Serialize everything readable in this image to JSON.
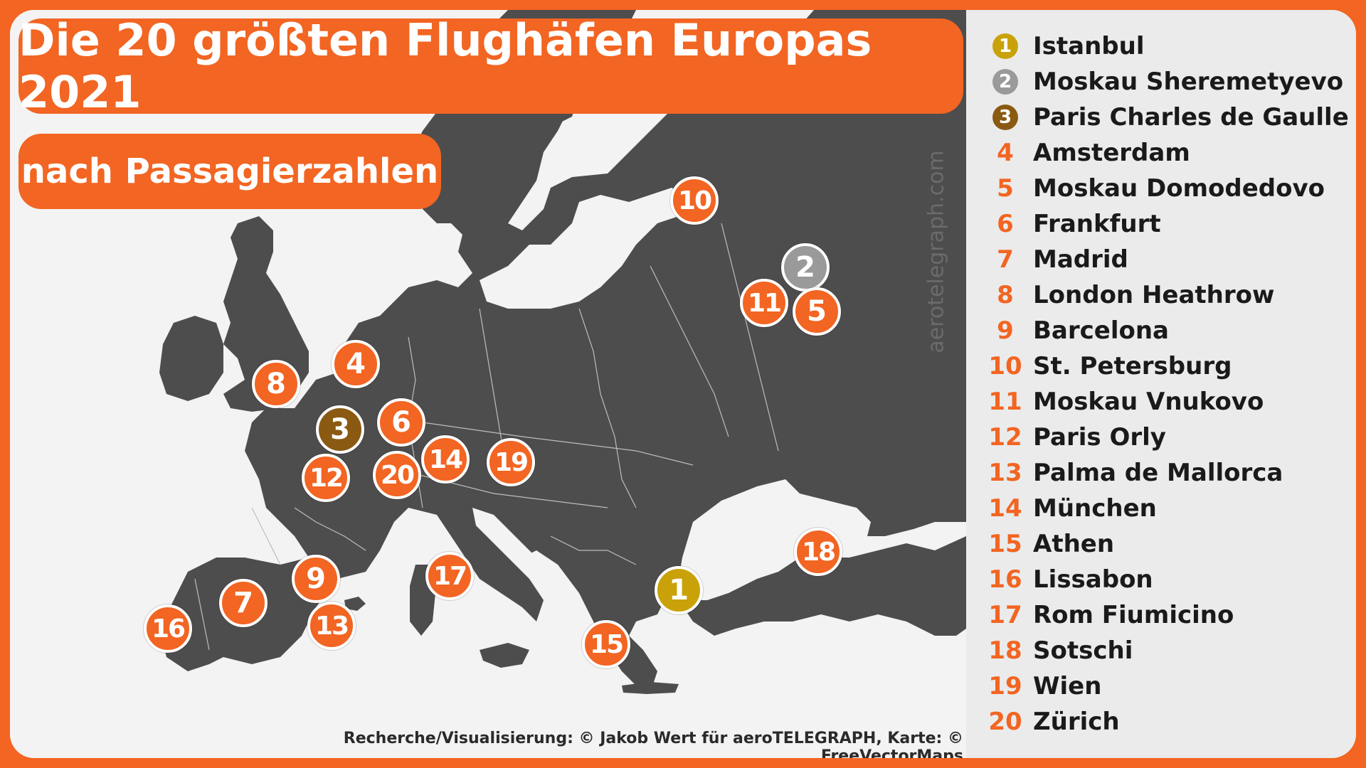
{
  "title": "Die 20 größten Flughäfen Europas 2021",
  "subtitle": "nach Passagierzahlen",
  "watermark": "aerotelegraph.com",
  "credit": "Recherche/Visualisierung: © Jakob Wert für aeroTELEGRAPH, Karte: © FreeVectorMaps",
  "colors": {
    "background": "#f26522",
    "accent": "#f26522",
    "land": "#4d4d4d",
    "water": "#f3f3f3",
    "gold": "#c9a20a",
    "silver": "#9a9a9a",
    "bronze": "#8a5a12"
  },
  "markers": [
    {
      "rank": "1",
      "style": "gold"
    },
    {
      "rank": "2",
      "style": "silver"
    },
    {
      "rank": "3",
      "style": "bronze"
    },
    {
      "rank": "4",
      "style": "orange"
    },
    {
      "rank": "5",
      "style": "orange"
    },
    {
      "rank": "6",
      "style": "orange"
    },
    {
      "rank": "7",
      "style": "orange"
    },
    {
      "rank": "8",
      "style": "orange"
    },
    {
      "rank": "9",
      "style": "orange"
    },
    {
      "rank": "10",
      "style": "orange"
    },
    {
      "rank": "11",
      "style": "orange"
    },
    {
      "rank": "12",
      "style": "orange"
    },
    {
      "rank": "13",
      "style": "orange"
    },
    {
      "rank": "14",
      "style": "orange"
    },
    {
      "rank": "15",
      "style": "orange"
    },
    {
      "rank": "16",
      "style": "orange"
    },
    {
      "rank": "17",
      "style": "orange"
    },
    {
      "rank": "18",
      "style": "orange"
    },
    {
      "rank": "19",
      "style": "orange"
    },
    {
      "rank": "20",
      "style": "orange"
    }
  ],
  "legend": [
    {
      "rank": "1",
      "name": "Istanbul"
    },
    {
      "rank": "2",
      "name": "Moskau Sheremetyevo"
    },
    {
      "rank": "3",
      "name": "Paris Charles de Gaulle"
    },
    {
      "rank": "4",
      "name": "Amsterdam"
    },
    {
      "rank": "5",
      "name": "Moskau Domodedovo"
    },
    {
      "rank": "6",
      "name": "Frankfurt"
    },
    {
      "rank": "7",
      "name": "Madrid"
    },
    {
      "rank": "8",
      "name": "London Heathrow"
    },
    {
      "rank": "9",
      "name": "Barcelona"
    },
    {
      "rank": "10",
      "name": "St. Petersburg"
    },
    {
      "rank": "11",
      "name": "Moskau Vnukovo"
    },
    {
      "rank": "12",
      "name": "Paris Orly"
    },
    {
      "rank": "13",
      "name": "Palma de Mallorca"
    },
    {
      "rank": "14",
      "name": "München"
    },
    {
      "rank": "15",
      "name": "Athen"
    },
    {
      "rank": "16",
      "name": "Lissabon"
    },
    {
      "rank": "17",
      "name": "Rom Fiumicino"
    },
    {
      "rank": "18",
      "name": "Sotschi"
    },
    {
      "rank": "19",
      "name": "Wien"
    },
    {
      "rank": "20",
      "name": "Zürich"
    }
  ],
  "logo_icon": "aerotelegraph-logo"
}
